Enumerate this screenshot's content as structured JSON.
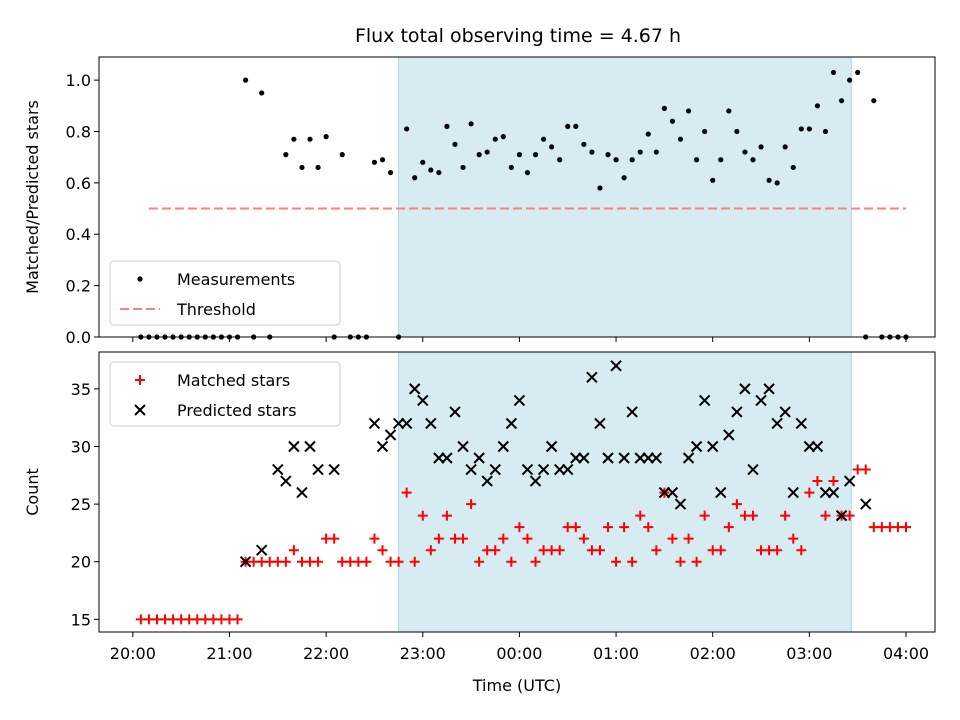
{
  "chart_data": [
    {
      "type": "scatter",
      "title": "Flux total observing time = 4.67 h",
      "xlabel": "",
      "ylabel": "Matched/Predicted stars",
      "ylim": [
        0,
        1.09
      ],
      "yticks": [
        "0.0",
        "0.2",
        "0.4",
        "0.6",
        "0.8",
        "1.0"
      ],
      "shaded_span": [
        "22:45",
        "03:26"
      ],
      "shaded_color": "#add8e6",
      "legend_position": "lower-left",
      "series": [
        {
          "name": "Measurements",
          "marker": "dot",
          "color": "#000000",
          "points": [
            [
              "20:05",
              0
            ],
            [
              "20:10",
              0
            ],
            [
              "20:15",
              0
            ],
            [
              "20:20",
              0
            ],
            [
              "20:25",
              0
            ],
            [
              "20:30",
              0
            ],
            [
              "20:35",
              0
            ],
            [
              "20:40",
              0
            ],
            [
              "20:45",
              0
            ],
            [
              "20:50",
              0
            ],
            [
              "20:55",
              0
            ],
            [
              "21:00",
              0
            ],
            [
              "21:05",
              0
            ],
            [
              "21:10",
              1.0
            ],
            [
              "21:20",
              0.95
            ],
            [
              "21:15",
              0
            ],
            [
              "21:25",
              0
            ],
            [
              "21:35",
              0.71
            ],
            [
              "21:40",
              0.77
            ],
            [
              "21:45",
              0.66
            ],
            [
              "21:50",
              0.77
            ],
            [
              "21:55",
              0.66
            ],
            [
              "22:00",
              0.78
            ],
            [
              "22:05",
              0
            ],
            [
              "22:10",
              0.71
            ],
            [
              "22:15",
              0
            ],
            [
              "22:20",
              0
            ],
            [
              "22:25",
              0
            ],
            [
              "22:30",
              0.68
            ],
            [
              "22:35",
              0.69
            ],
            [
              "22:40",
              0.64
            ],
            [
              "22:45",
              0
            ],
            [
              "22:50",
              0.81
            ],
            [
              "22:55",
              0.62
            ],
            [
              "23:00",
              0.68
            ],
            [
              "23:05",
              0.65
            ],
            [
              "23:10",
              0.64
            ],
            [
              "23:15",
              0.82
            ],
            [
              "23:20",
              0.75
            ],
            [
              "23:25",
              0.66
            ],
            [
              "23:30",
              0.83
            ],
            [
              "23:35",
              0.71
            ],
            [
              "23:40",
              0.72
            ],
            [
              "23:45",
              0.77
            ],
            [
              "23:50",
              0.78
            ],
            [
              "23:55",
              0.66
            ],
            [
              "00:00",
              0.71
            ],
            [
              "00:05",
              0.64
            ],
            [
              "00:10",
              0.71
            ],
            [
              "00:15",
              0.77
            ],
            [
              "00:20",
              0.74
            ],
            [
              "00:25",
              0.69
            ],
            [
              "00:30",
              0.82
            ],
            [
              "00:35",
              0.82
            ],
            [
              "00:40",
              0.75
            ],
            [
              "00:45",
              0.72
            ],
            [
              "00:50",
              0.58
            ],
            [
              "00:55",
              0.71
            ],
            [
              "01:00",
              0.69
            ],
            [
              "01:05",
              0.62
            ],
            [
              "01:10",
              0.69
            ],
            [
              "01:15",
              0.72
            ],
            [
              "01:20",
              0.79
            ],
            [
              "01:25",
              0.72
            ],
            [
              "01:30",
              0.89
            ],
            [
              "01:35",
              0.84
            ],
            [
              "01:40",
              0.77
            ],
            [
              "01:45",
              0.88
            ],
            [
              "01:50",
              0.69
            ],
            [
              "01:55",
              0.8
            ],
            [
              "02:00",
              0.61
            ],
            [
              "02:05",
              0.69
            ],
            [
              "02:10",
              0.88
            ],
            [
              "02:15",
              0.8
            ],
            [
              "02:20",
              0.72
            ],
            [
              "02:25",
              0.69
            ],
            [
              "02:30",
              0.74
            ],
            [
              "02:35",
              0.61
            ],
            [
              "02:40",
              0.6
            ],
            [
              "02:45",
              0.74
            ],
            [
              "02:50",
              0.66
            ],
            [
              "02:55",
              0.81
            ],
            [
              "03:00",
              0.81
            ],
            [
              "03:05",
              0.9
            ],
            [
              "03:10",
              0.8
            ],
            [
              "03:15",
              1.03
            ],
            [
              "03:20",
              0.92
            ],
            [
              "03:25",
              1.0
            ],
            [
              "03:30",
              1.03
            ],
            [
              "03:35",
              0
            ],
            [
              "03:40",
              0.92
            ],
            [
              "03:45",
              0
            ],
            [
              "03:50",
              0
            ],
            [
              "03:55",
              0
            ],
            [
              "04:00",
              0
            ]
          ]
        },
        {
          "name": "Threshold",
          "line": "dashed",
          "color": "#ff7f7f",
          "points": [
            [
              "20:10",
              0.5
            ],
            [
              "04:00",
              0.5
            ]
          ]
        }
      ]
    },
    {
      "type": "scatter",
      "xlabel": "Time (UTC)",
      "ylabel": "Count",
      "ylim": [
        13.9,
        38.2
      ],
      "yticks": [
        "15",
        "20",
        "25",
        "30",
        "35"
      ],
      "xticks": [
        "20:00",
        "21:00",
        "22:00",
        "23:00",
        "00:00",
        "01:00",
        "02:00",
        "03:00",
        "04:00"
      ],
      "shaded_span": [
        "22:45",
        "03:26"
      ],
      "shaded_color": "#add8e6",
      "legend_position": "upper-left",
      "series": [
        {
          "name": "Matched stars",
          "marker": "plus",
          "color": "#ff0000",
          "points": [
            [
              "20:05",
              15
            ],
            [
              "20:10",
              15
            ],
            [
              "20:15",
              15
            ],
            [
              "20:20",
              15
            ],
            [
              "20:25",
              15
            ],
            [
              "20:30",
              15
            ],
            [
              "20:35",
              15
            ],
            [
              "20:40",
              15
            ],
            [
              "20:45",
              15
            ],
            [
              "20:50",
              15
            ],
            [
              "20:55",
              15
            ],
            [
              "21:00",
              15
            ],
            [
              "21:05",
              15
            ],
            [
              "21:10",
              20
            ],
            [
              "21:15",
              20
            ],
            [
              "21:20",
              20
            ],
            [
              "21:25",
              20
            ],
            [
              "21:30",
              20
            ],
            [
              "21:35",
              20
            ],
            [
              "21:40",
              21
            ],
            [
              "21:45",
              20
            ],
            [
              "21:50",
              20
            ],
            [
              "21:55",
              20
            ],
            [
              "22:00",
              22
            ],
            [
              "22:05",
              22
            ],
            [
              "22:10",
              20
            ],
            [
              "22:15",
              20
            ],
            [
              "22:20",
              20
            ],
            [
              "22:25",
              20
            ],
            [
              "22:30",
              22
            ],
            [
              "22:35",
              21
            ],
            [
              "22:40",
              20
            ],
            [
              "22:45",
              20
            ],
            [
              "22:50",
              26
            ],
            [
              "22:55",
              20
            ],
            [
              "23:00",
              24
            ],
            [
              "23:05",
              21
            ],
            [
              "23:10",
              22
            ],
            [
              "23:15",
              24
            ],
            [
              "23:20",
              22
            ],
            [
              "23:25",
              22
            ],
            [
              "23:30",
              25
            ],
            [
              "23:35",
              20
            ],
            [
              "23:40",
              21
            ],
            [
              "23:45",
              21
            ],
            [
              "23:50",
              22
            ],
            [
              "23:55",
              20
            ],
            [
              "00:00",
              23
            ],
            [
              "00:05",
              22
            ],
            [
              "00:10",
              20
            ],
            [
              "00:15",
              21
            ],
            [
              "00:20",
              21
            ],
            [
              "00:25",
              21
            ],
            [
              "00:30",
              23
            ],
            [
              "00:35",
              23
            ],
            [
              "00:40",
              22
            ],
            [
              "00:45",
              21
            ],
            [
              "00:50",
              21
            ],
            [
              "00:55",
              23
            ],
            [
              "01:00",
              20
            ],
            [
              "01:05",
              23
            ],
            [
              "01:10",
              20
            ],
            [
              "01:15",
              24
            ],
            [
              "01:20",
              23
            ],
            [
              "01:25",
              21
            ],
            [
              "01:30",
              26
            ],
            [
              "01:35",
              22
            ],
            [
              "01:40",
              20
            ],
            [
              "01:45",
              22
            ],
            [
              "01:50",
              20
            ],
            [
              "01:55",
              24
            ],
            [
              "02:00",
              21
            ],
            [
              "02:05",
              21
            ],
            [
              "02:10",
              23
            ],
            [
              "02:15",
              25
            ],
            [
              "02:20",
              24
            ],
            [
              "02:25",
              24
            ],
            [
              "02:30",
              21
            ],
            [
              "02:35",
              21
            ],
            [
              "02:40",
              21
            ],
            [
              "02:45",
              24
            ],
            [
              "02:50",
              22
            ],
            [
              "02:55",
              21
            ],
            [
              "03:00",
              26
            ],
            [
              "03:05",
              27
            ],
            [
              "03:10",
              24
            ],
            [
              "03:15",
              27
            ],
            [
              "03:20",
              24
            ],
            [
              "03:25",
              24
            ],
            [
              "03:30",
              28
            ],
            [
              "03:35",
              28
            ],
            [
              "03:40",
              23
            ],
            [
              "03:45",
              23
            ],
            [
              "03:50",
              23
            ],
            [
              "03:55",
              23
            ],
            [
              "04:00",
              23
            ]
          ]
        },
        {
          "name": "Predicted stars",
          "marker": "x",
          "color": "#000000",
          "points": [
            [
              "21:10",
              20
            ],
            [
              "21:20",
              21
            ],
            [
              "21:30",
              28
            ],
            [
              "21:35",
              27
            ],
            [
              "21:40",
              30
            ],
            [
              "21:45",
              26
            ],
            [
              "21:50",
              30
            ],
            [
              "21:55",
              28
            ],
            [
              "22:05",
              28
            ],
            [
              "22:30",
              32
            ],
            [
              "22:35",
              30
            ],
            [
              "22:40",
              31
            ],
            [
              "22:45",
              32
            ],
            [
              "22:50",
              32
            ],
            [
              "22:55",
              35
            ],
            [
              "23:00",
              34
            ],
            [
              "23:05",
              32
            ],
            [
              "23:10",
              29
            ],
            [
              "23:15",
              29
            ],
            [
              "23:20",
              33
            ],
            [
              "23:25",
              30
            ],
            [
              "23:30",
              28
            ],
            [
              "23:35",
              29
            ],
            [
              "23:40",
              27
            ],
            [
              "23:45",
              28
            ],
            [
              "23:50",
              30
            ],
            [
              "23:55",
              32
            ],
            [
              "00:00",
              34
            ],
            [
              "00:05",
              28
            ],
            [
              "00:10",
              27
            ],
            [
              "00:15",
              28
            ],
            [
              "00:20",
              30
            ],
            [
              "00:25",
              28
            ],
            [
              "00:30",
              28
            ],
            [
              "00:35",
              29
            ],
            [
              "00:40",
              29
            ],
            [
              "00:45",
              36
            ],
            [
              "00:50",
              32
            ],
            [
              "00:55",
              29
            ],
            [
              "01:00",
              37
            ],
            [
              "01:05",
              29
            ],
            [
              "01:10",
              33
            ],
            [
              "01:15",
              29
            ],
            [
              "01:20",
              29
            ],
            [
              "01:25",
              29
            ],
            [
              "01:30",
              26
            ],
            [
              "01:35",
              26
            ],
            [
              "01:40",
              25
            ],
            [
              "01:45",
              29
            ],
            [
              "01:50",
              30
            ],
            [
              "01:55",
              34
            ],
            [
              "02:00",
              30
            ],
            [
              "02:05",
              26
            ],
            [
              "02:10",
              31
            ],
            [
              "02:15",
              33
            ],
            [
              "02:20",
              35
            ],
            [
              "02:25",
              28
            ],
            [
              "02:30",
              34
            ],
            [
              "02:35",
              35
            ],
            [
              "02:40",
              32
            ],
            [
              "02:45",
              33
            ],
            [
              "02:50",
              26
            ],
            [
              "02:55",
              32
            ],
            [
              "03:00",
              30
            ],
            [
              "03:05",
              30
            ],
            [
              "03:10",
              26
            ],
            [
              "03:15",
              26
            ],
            [
              "03:20",
              24
            ],
            [
              "03:25",
              27
            ],
            [
              "03:35",
              25
            ]
          ]
        }
      ]
    }
  ]
}
